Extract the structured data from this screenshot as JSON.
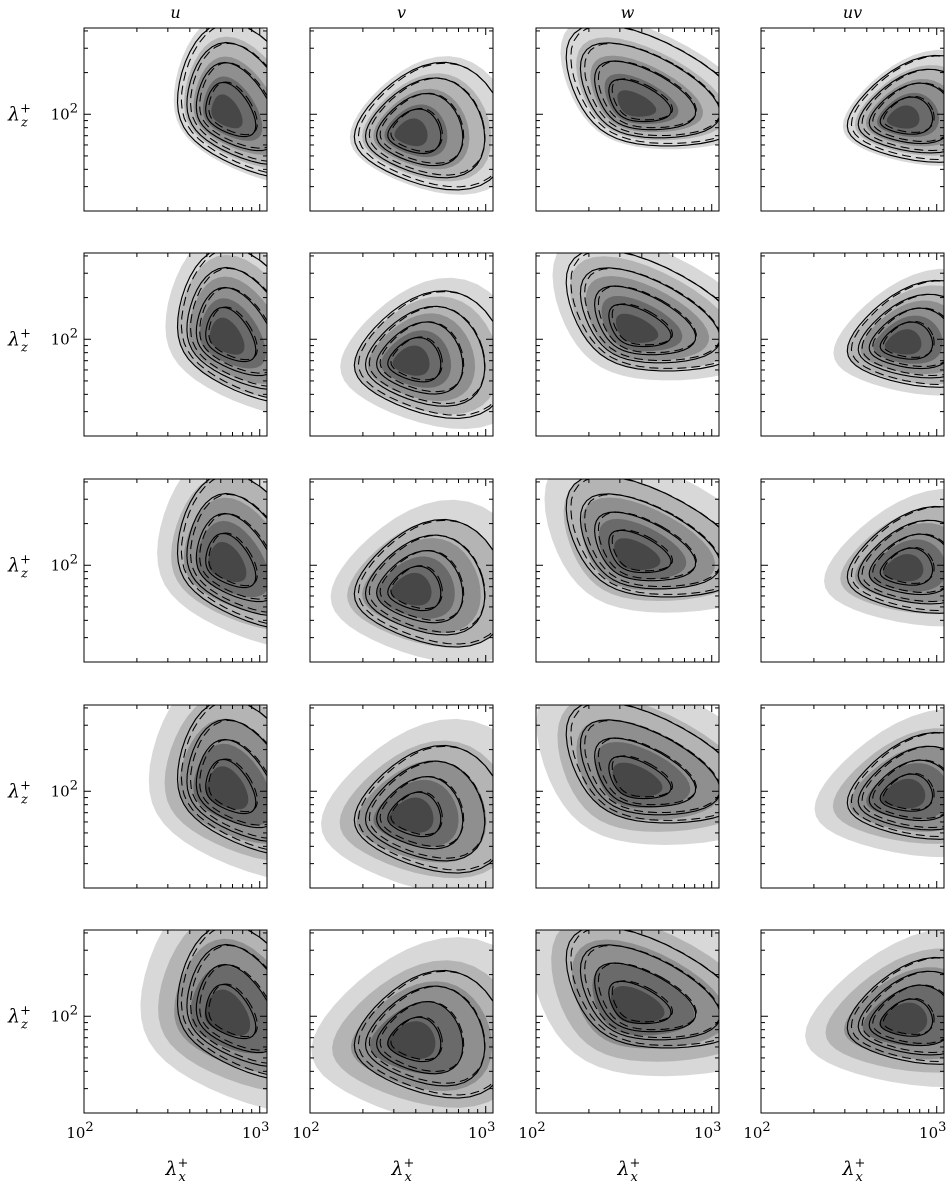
{
  "chart_data": {
    "type": "heatmap",
    "columns": [
      "u",
      "v",
      "w",
      "uv"
    ],
    "rows": 5,
    "x_axis": {
      "symbol": "λ",
      "superscript": "+",
      "subscript": "x",
      "scale": "log",
      "range": [
        100,
        1100
      ],
      "tick_labels": [
        {
          "value": 100,
          "text": "10"
        },
        {
          "value": 1000,
          "text": "10"
        }
      ],
      "tick_label_exponents": [
        "2",
        "3"
      ]
    },
    "y_axis": {
      "symbol": "λ",
      "superscript": "+",
      "subscript": "z",
      "scale": "log",
      "range": [
        20,
        420
      ],
      "tick_labels": [
        {
          "value": 100,
          "text": "10"
        }
      ],
      "tick_label_exponents": [
        "2"
      ]
    },
    "shading_colors": [
      "#d8d8d8",
      "#b4b4b4",
      "#8f8f8f",
      "#6a6a6a",
      "#474747"
    ],
    "panel_peaks": [
      [
        {
          "col": "u",
          "x_peak": 600,
          "y_peak": 100
        },
        {
          "col": "v",
          "x_peak": 350,
          "y_peak": 72
        },
        {
          "col": "w",
          "x_peak": 350,
          "y_peak": 110
        },
        {
          "col": "uv",
          "x_peak": 600,
          "y_peak": 92
        }
      ],
      [
        {
          "col": "u",
          "x_peak": 600,
          "y_peak": 100
        },
        {
          "col": "v",
          "x_peak": 350,
          "y_peak": 68
        },
        {
          "col": "w",
          "x_peak": 350,
          "y_peak": 110
        },
        {
          "col": "uv",
          "x_peak": 600,
          "y_peak": 92
        }
      ],
      [
        {
          "col": "u",
          "x_peak": 600,
          "y_peak": 100
        },
        {
          "col": "v",
          "x_peak": 350,
          "y_peak": 65
        },
        {
          "col": "w",
          "x_peak": 350,
          "y_peak": 110
        },
        {
          "col": "uv",
          "x_peak": 600,
          "y_peak": 92
        }
      ],
      [
        {
          "col": "u",
          "x_peak": 600,
          "y_peak": 100
        },
        {
          "col": "v",
          "x_peak": 350,
          "y_peak": 65
        },
        {
          "col": "w",
          "x_peak": 350,
          "y_peak": 110
        },
        {
          "col": "uv",
          "x_peak": 600,
          "y_peak": 92
        }
      ],
      [
        {
          "col": "u",
          "x_peak": 600,
          "y_peak": 100
        },
        {
          "col": "v",
          "x_peak": 350,
          "y_peak": 65
        },
        {
          "col": "w",
          "x_peak": 350,
          "y_peak": 110
        },
        {
          "col": "uv",
          "x_peak": 600,
          "y_peak": 92
        }
      ]
    ]
  }
}
